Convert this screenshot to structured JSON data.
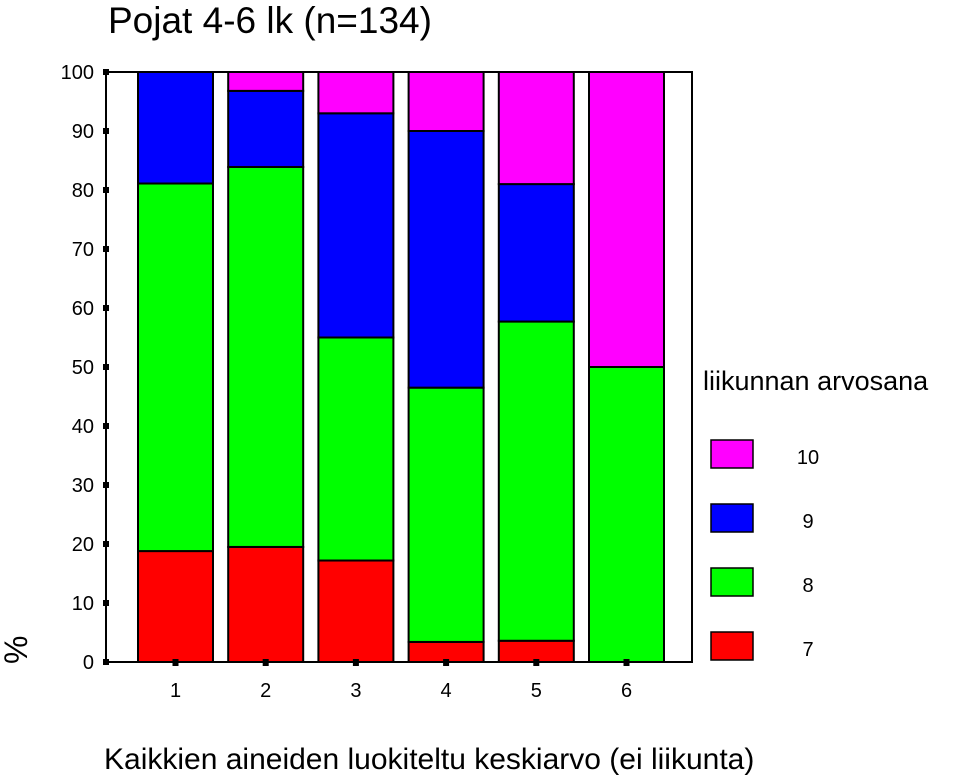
{
  "chart_data": {
    "type": "bar",
    "stacked": true,
    "title": "Pojat 4-6 lk (n=134)",
    "xlabel": "Kaikkien aineiden luokiteltu keskiarvo (ei liikunta)",
    "ylabel": "%",
    "categories": [
      "1",
      "2",
      "3",
      "4",
      "5",
      "6"
    ],
    "yticks": [
      "0",
      "10",
      "20",
      "30",
      "40",
      "50",
      "60",
      "70",
      "80",
      "90",
      "100"
    ],
    "ylim": [
      0,
      100
    ],
    "legend_title": "liikunnan arvosana",
    "legend_position": "right",
    "series": [
      {
        "name": "7",
        "color": "#ff0000",
        "values": [
          18.8,
          19.5,
          17.2,
          3.4,
          3.6,
          0
        ]
      },
      {
        "name": "8",
        "color": "#00ff00",
        "values": [
          62.3,
          64.4,
          37.8,
          43.1,
          54.1,
          50.0
        ]
      },
      {
        "name": "9",
        "color": "#0000ff",
        "values": [
          18.9,
          12.9,
          38.0,
          43.5,
          23.3,
          0
        ]
      },
      {
        "name": "10",
        "color": "#ff00ff",
        "values": [
          0,
          3.2,
          7.0,
          10.0,
          19.0,
          50.0
        ]
      }
    ]
  }
}
